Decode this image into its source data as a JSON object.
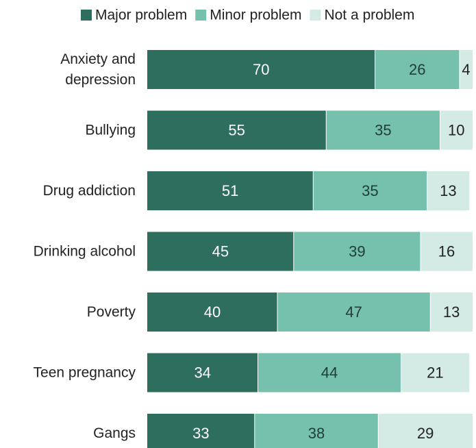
{
  "chart_data": {
    "type": "bar",
    "orientation": "horizontal",
    "stacked": true,
    "categories": [
      [
        "Anxiety and",
        "depression"
      ],
      [
        "Bullying"
      ],
      [
        "Drug addiction"
      ],
      [
        "Drinking alcohol"
      ],
      [
        "Poverty"
      ],
      [
        "Teen pregnancy"
      ],
      [
        "Gangs"
      ]
    ],
    "series": [
      {
        "name": "Major problem",
        "color": "#2e6e5e",
        "text_color": "#ffffff",
        "values": [
          70,
          55,
          51,
          45,
          40,
          34,
          33
        ]
      },
      {
        "name": "Minor problem",
        "color": "#76c1ae",
        "text_color": "#1f3d35",
        "values": [
          26,
          35,
          35,
          39,
          47,
          44,
          38
        ]
      },
      {
        "name": "Not a problem",
        "color": "#d3ebe4",
        "text_color": "#222222",
        "values": [
          4,
          10,
          13,
          16,
          13,
          21,
          29
        ]
      }
    ],
    "xlim": [
      0,
      100
    ],
    "legend": "top",
    "grid": false
  }
}
